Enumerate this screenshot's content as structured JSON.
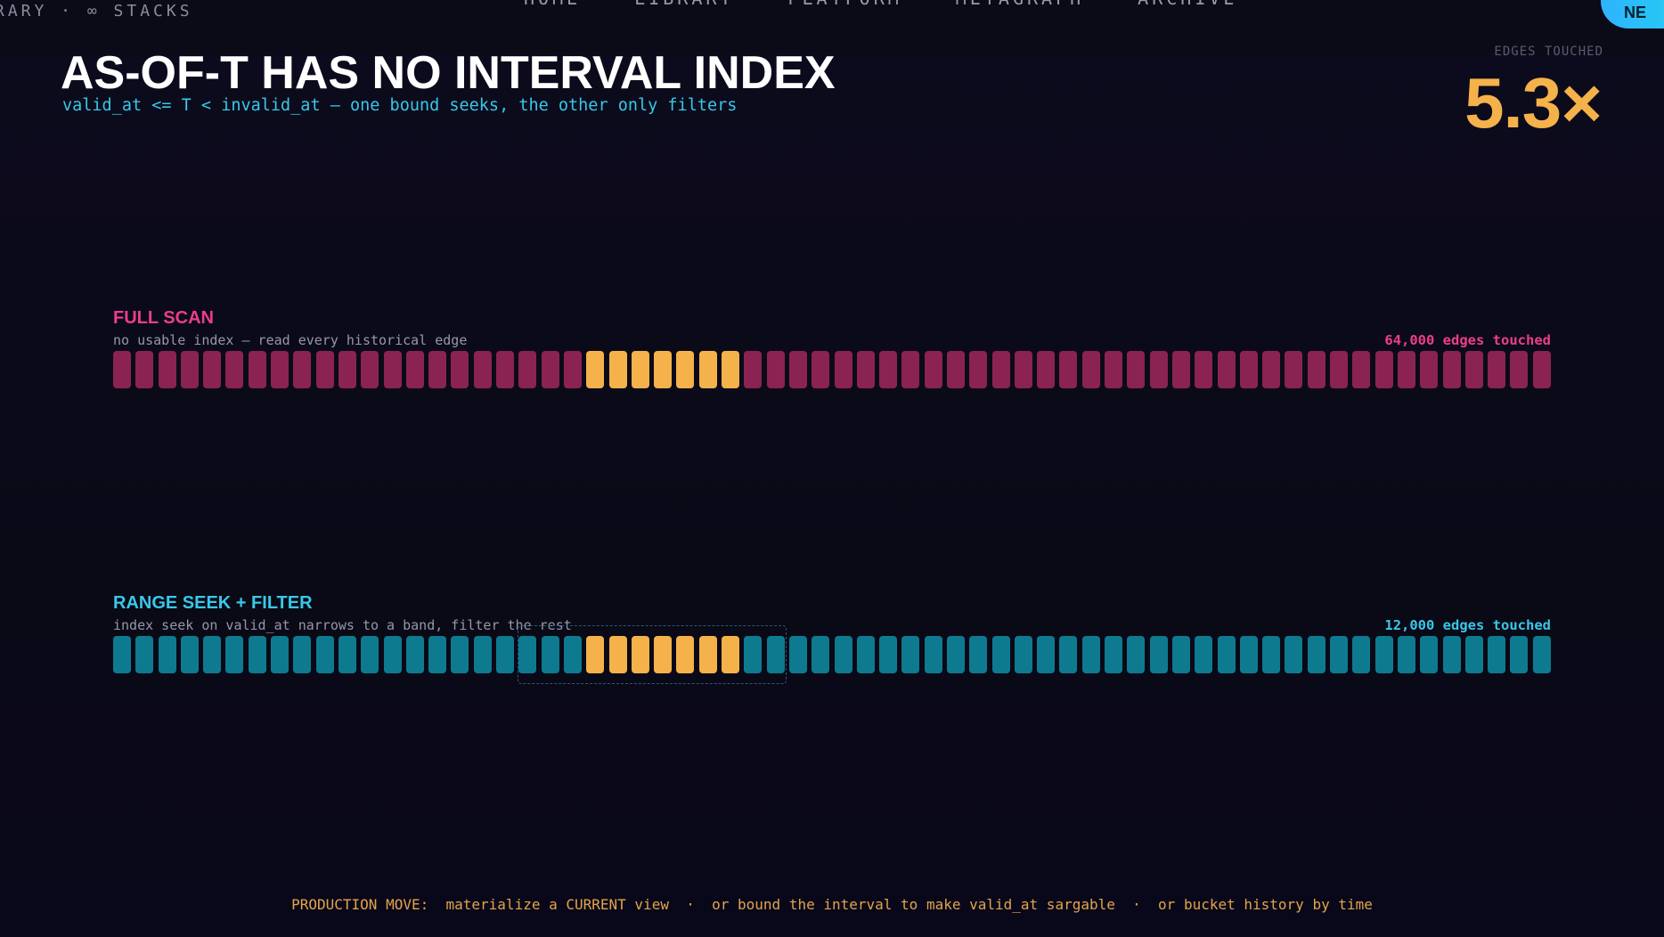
{
  "brand": {
    "text": "RARY · ∞ STACKS"
  },
  "nav": {
    "items": [
      "HOME",
      "LIBRARY",
      "PLATFORM",
      "METAGRAPH",
      "ARCHIVE"
    ]
  },
  "cta": {
    "label": "NE"
  },
  "header": {
    "title": "AS-OF-T HAS NO INTERVAL INDEX",
    "subtitle": "valid_at <= T < invalid_at — one bound seeks, the other only filters"
  },
  "metric": {
    "label": "EDGES TOUCHED",
    "value": "5.3×"
  },
  "panels": [
    {
      "title": "FULL SCAN",
      "description": "no usable index — read every historical edge",
      "count_label": "64,000 edges touched",
      "title_color": "#ec3e8a",
      "cell_color": "#8a2351",
      "highlight_color": "#f5b24a",
      "cell_count": 64,
      "highlight_start": 21,
      "highlight_end": 27
    },
    {
      "title": "RANGE SEEK + FILTER",
      "description": "index seek on valid_at narrows to a band, filter the rest",
      "count_label": "12,000 edges touched",
      "title_color": "#38c8e8",
      "cell_color": "#0e7a90",
      "highlight_color": "#f5b24a",
      "cell_count": 64,
      "highlight_start": 21,
      "highlight_end": 27
    }
  ],
  "footer": {
    "label": "PRODUCTION MOVE:",
    "items": [
      "materialize a CURRENT view",
      "or bound the interval to make valid_at sargable",
      "or bucket history by time"
    ],
    "separator": "·"
  }
}
